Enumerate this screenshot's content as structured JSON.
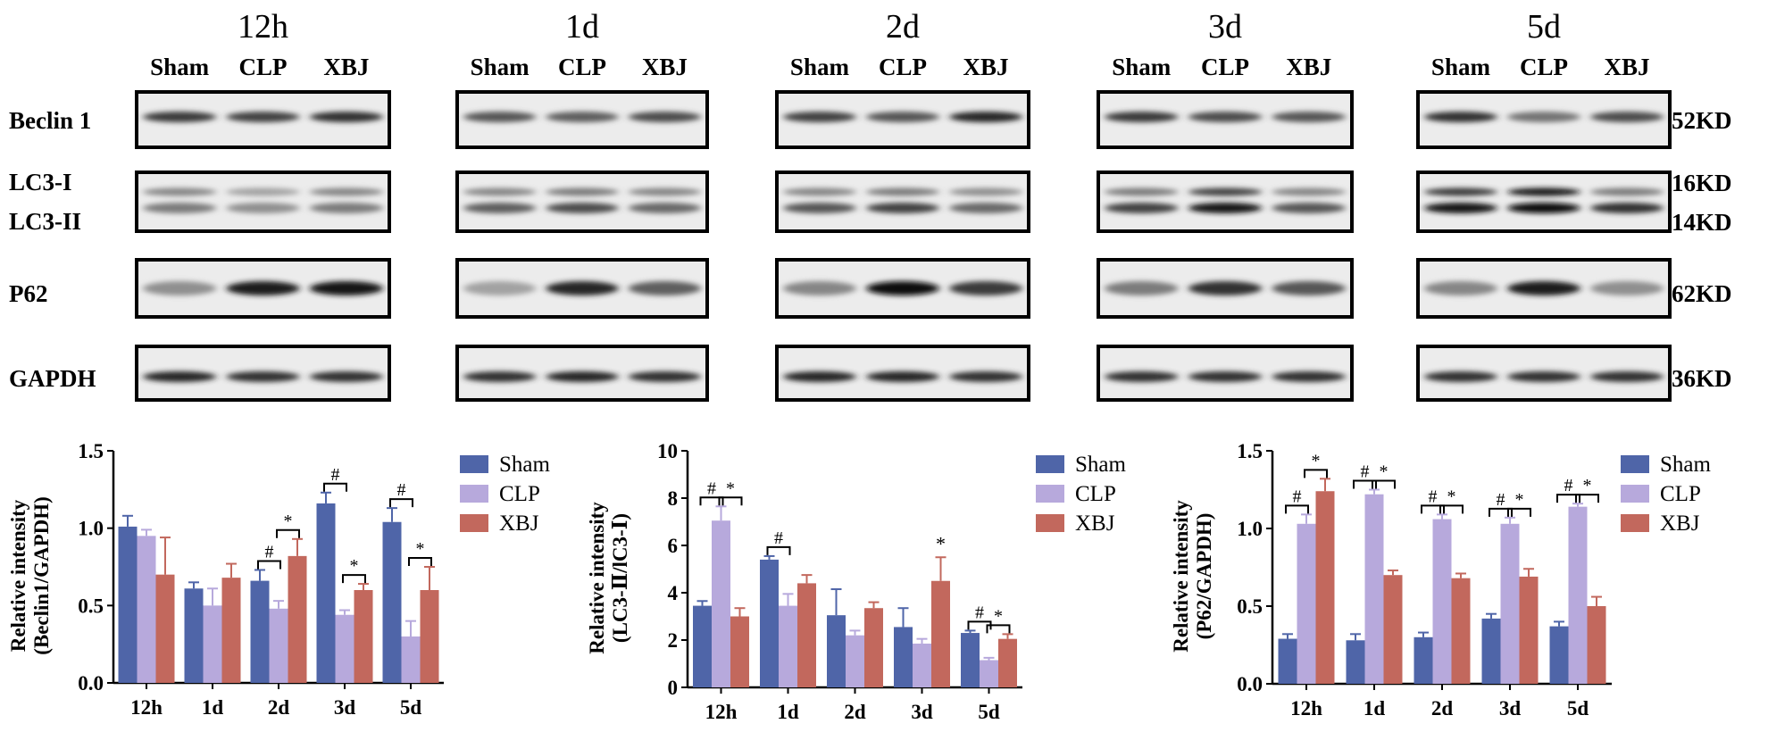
{
  "blot": {
    "timepoints": [
      "12h",
      "1d",
      "2d",
      "3d",
      "5d"
    ],
    "lanes": [
      "Sham",
      "CLP",
      "XBJ"
    ],
    "proteins": [
      "Beclin 1",
      "LC3-I",
      "LC3-II",
      "P62",
      "GAPDH"
    ],
    "sizes": [
      "52KD",
      "16KD",
      "14KD",
      "62KD",
      "36KD"
    ],
    "bands": {
      "beclin": [
        [
          0.75,
          0.7,
          0.8
        ],
        [
          0.6,
          0.55,
          0.65
        ],
        [
          0.7,
          0.6,
          0.85
        ],
        [
          0.75,
          0.65,
          0.6
        ],
        [
          0.8,
          0.45,
          0.65
        ]
      ],
      "lc3i": [
        [
          0.35,
          0.2,
          0.35
        ],
        [
          0.35,
          0.4,
          0.35
        ],
        [
          0.35,
          0.4,
          0.3
        ],
        [
          0.4,
          0.7,
          0.35
        ],
        [
          0.75,
          0.95,
          0.4
        ]
      ],
      "lc3ii": [
        [
          0.4,
          0.3,
          0.4
        ],
        [
          0.55,
          0.65,
          0.5
        ],
        [
          0.6,
          0.7,
          0.5
        ],
        [
          0.7,
          0.95,
          0.6
        ],
        [
          0.95,
          1.0,
          0.8
        ]
      ],
      "p62": [
        [
          0.3,
          0.9,
          0.95
        ],
        [
          0.2,
          0.85,
          0.55
        ],
        [
          0.35,
          1.0,
          0.75
        ],
        [
          0.4,
          0.8,
          0.6
        ],
        [
          0.35,
          0.9,
          0.3
        ]
      ],
      "gapdh": [
        [
          0.85,
          0.8,
          0.8
        ],
        [
          0.8,
          0.85,
          0.8
        ],
        [
          0.85,
          0.85,
          0.8
        ],
        [
          0.8,
          0.8,
          0.8
        ],
        [
          0.8,
          0.8,
          0.8
        ]
      ]
    }
  },
  "colors": {
    "Sham": "#4f65a8",
    "CLP": "#b7a9dc",
    "XBJ": "#c2685d"
  },
  "chart_data": [
    {
      "type": "bar",
      "categories": [
        "12h",
        "1d",
        "2d",
        "3d",
        "5d"
      ],
      "ylabel": [
        "Relative intensity",
        "(Beclin1/GAPDH)"
      ],
      "ylim": [
        0,
        1.5
      ],
      "yticks": [
        "0.0",
        "0.5",
        "1.0",
        "1.5"
      ],
      "legend": "top-right",
      "series": [
        {
          "name": "Sham",
          "values": [
            1.01,
            0.61,
            0.66,
            1.16,
            1.04
          ],
          "errors": [
            0.07,
            0.04,
            0.07,
            0.07,
            0.09
          ]
        },
        {
          "name": "CLP",
          "values": [
            0.95,
            0.5,
            0.48,
            0.44,
            0.3
          ],
          "errors": [
            0.04,
            0.11,
            0.05,
            0.03,
            0.1
          ]
        },
        {
          "name": "XBJ",
          "values": [
            0.7,
            0.68,
            0.82,
            0.6,
            0.6
          ],
          "errors": [
            0.24,
            0.09,
            0.11,
            0.04,
            0.15
          ]
        }
      ],
      "annotations": [
        {
          "label": "#",
          "cat": 2,
          "from": 0,
          "to": 1
        },
        {
          "label": "*",
          "cat": 2,
          "from": 1,
          "to": 2
        },
        {
          "label": "#",
          "cat": 3,
          "from": 0,
          "to": 1
        },
        {
          "label": "*",
          "cat": 3,
          "from": 1,
          "to": 2
        },
        {
          "label": "#",
          "cat": 4,
          "from": 0,
          "to": 1
        },
        {
          "label": "*",
          "cat": 4,
          "from": 1,
          "to": 2
        }
      ]
    },
    {
      "type": "bar",
      "categories": [
        "12h",
        "1d",
        "2d",
        "3d",
        "5d"
      ],
      "ylabel": [
        "Relative intensity",
        "(LC3-Ⅱ/lC3-Ⅰ)"
      ],
      "ylim": [
        0,
        10
      ],
      "yticks": [
        "0",
        "2",
        "4",
        "6",
        "8",
        "10"
      ],
      "legend": "top-right",
      "series": [
        {
          "name": "Sham",
          "values": [
            3.45,
            5.4,
            3.05,
            2.55,
            2.3
          ],
          "errors": [
            0.2,
            0.15,
            1.1,
            0.8,
            0.1
          ]
        },
        {
          "name": "CLP",
          "values": [
            7.05,
            3.45,
            2.2,
            1.85,
            1.15
          ],
          "errors": [
            0.6,
            0.5,
            0.2,
            0.2,
            0.1
          ]
        },
        {
          "name": "XBJ",
          "values": [
            3.0,
            4.4,
            3.35,
            4.5,
            2.05
          ],
          "errors": [
            0.35,
            0.35,
            0.25,
            1.0,
            0.2
          ]
        }
      ],
      "annotations": [
        {
          "label": "#",
          "cat": 0,
          "from": 0,
          "to": 1
        },
        {
          "label": "*",
          "cat": 0,
          "from": 1,
          "to": 2
        },
        {
          "label": "#",
          "cat": 1,
          "from": 0,
          "to": 1
        },
        {
          "label": "*",
          "cat": 3,
          "from": 2,
          "to": 2
        },
        {
          "label": "#",
          "cat": 4,
          "from": 0,
          "to": 1
        },
        {
          "label": "*",
          "cat": 4,
          "from": 1,
          "to": 2
        }
      ]
    },
    {
      "type": "bar",
      "categories": [
        "12h",
        "1d",
        "2d",
        "3d",
        "5d"
      ],
      "ylabel": [
        "Relative intensity",
        "(P62/GAPDH)"
      ],
      "ylim": [
        0,
        1.5
      ],
      "yticks": [
        "0.0",
        "0.5",
        "1.0",
        "1.5"
      ],
      "legend": "top-right",
      "series": [
        {
          "name": "Sham",
          "values": [
            0.29,
            0.28,
            0.3,
            0.42,
            0.37
          ],
          "errors": [
            0.03,
            0.04,
            0.03,
            0.03,
            0.03
          ]
        },
        {
          "name": "CLP",
          "values": [
            1.03,
            1.22,
            1.06,
            1.03,
            1.14
          ],
          "errors": [
            0.06,
            0.03,
            0.03,
            0.04,
            0.02
          ]
        },
        {
          "name": "XBJ",
          "values": [
            1.24,
            0.7,
            0.68,
            0.69,
            0.5
          ],
          "errors": [
            0.08,
            0.03,
            0.03,
            0.05,
            0.06
          ]
        }
      ],
      "annotations": [
        {
          "label": "#",
          "cat": 0,
          "from": 0,
          "to": 1
        },
        {
          "label": "*",
          "cat": 0,
          "from": 1,
          "to": 2
        },
        {
          "label": "#",
          "cat": 1,
          "from": 0,
          "to": 1
        },
        {
          "label": "*",
          "cat": 1,
          "from": 1,
          "to": 2
        },
        {
          "label": "#",
          "cat": 2,
          "from": 0,
          "to": 1
        },
        {
          "label": "*",
          "cat": 2,
          "from": 1,
          "to": 2
        },
        {
          "label": "#",
          "cat": 3,
          "from": 0,
          "to": 1
        },
        {
          "label": "*",
          "cat": 3,
          "from": 1,
          "to": 2
        },
        {
          "label": "#",
          "cat": 4,
          "from": 0,
          "to": 1
        },
        {
          "label": "*",
          "cat": 4,
          "from": 1,
          "to": 2
        }
      ]
    }
  ]
}
